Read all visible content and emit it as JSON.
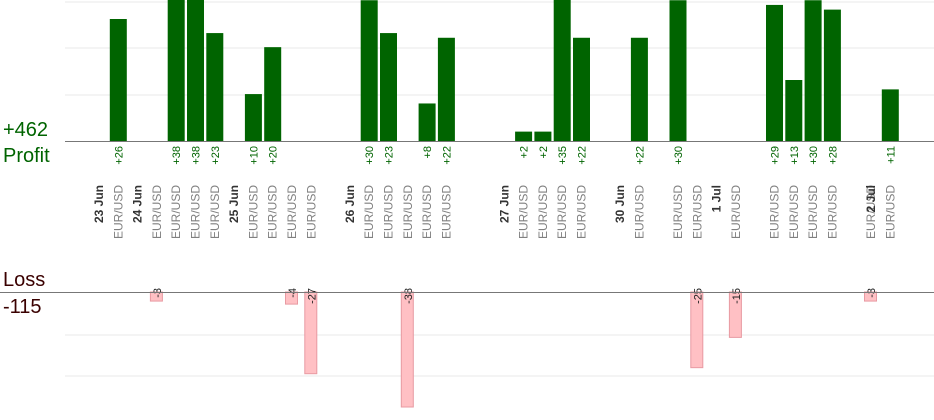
{
  "colors": {
    "profit_bar": "#006400",
    "loss_bar": "#ffc0c4",
    "profit_text": "#006400",
    "loss_text": "#3a0000",
    "grid": "#e8e8e8",
    "axis": "#777777",
    "pair_text": "#808080",
    "date_text": "#333333"
  },
  "summary": {
    "profit_total": "+462",
    "profit_label": "Profit",
    "loss_label": "Loss",
    "loss_total": "-115"
  },
  "chart_data": {
    "type": "bar",
    "title": "",
    "xlabel": "",
    "ylabel": "",
    "grid": true,
    "profit_ylim": [
      0,
      30
    ],
    "loss_ylim": [
      -40,
      0
    ],
    "date_groups": [
      {
        "date": "23 Jun",
        "slots": [
          0,
          1
        ]
      },
      {
        "date": "24 Jun",
        "slots": [
          2,
          3,
          4,
          5,
          6
        ]
      },
      {
        "date": "25 Jun",
        "slots": [
          7,
          8,
          9,
          10,
          11,
          12
        ]
      },
      {
        "date": "26 Jun",
        "slots": [
          13,
          14,
          15,
          16,
          17,
          18,
          19,
          20
        ]
      },
      {
        "date": "27 Jun",
        "slots": [
          21,
          22,
          23,
          24,
          25,
          26
        ]
      },
      {
        "date": "30 Jun",
        "slots": [
          27,
          28,
          29,
          30,
          31
        ]
      },
      {
        "date": "1 Jul",
        "slots": [
          32,
          33,
          34,
          35,
          36,
          37,
          38,
          39
        ]
      },
      {
        "date": "2 Jul",
        "slots": [
          40,
          41
        ]
      }
    ],
    "trades": [
      {
        "pair": "",
        "value": null
      },
      {
        "pair": "EUR/USD",
        "value": 26
      },
      {
        "pair": "",
        "value": null
      },
      {
        "pair": "EUR/USD",
        "value": -3
      },
      {
        "pair": "EUR/USD",
        "value": 38
      },
      {
        "pair": "EUR/USD",
        "value": 38
      },
      {
        "pair": "EUR/USD",
        "value": 23
      },
      {
        "pair": "",
        "value": null
      },
      {
        "pair": "EUR/USD",
        "value": 10
      },
      {
        "pair": "EUR/USD",
        "value": 20
      },
      {
        "pair": "EUR/USD",
        "value": -4
      },
      {
        "pair": "EUR/USD",
        "value": -27
      },
      {
        "pair": "",
        "value": null
      },
      {
        "pair": "",
        "value": null
      },
      {
        "pair": "EUR/USD",
        "value": 30
      },
      {
        "pair": "EUR/USD",
        "value": 23
      },
      {
        "pair": "EUR/USD",
        "value": -38
      },
      {
        "pair": "EUR/USD",
        "value": 8
      },
      {
        "pair": "EUR/USD",
        "value": 22
      },
      {
        "pair": "",
        "value": null
      },
      {
        "pair": "",
        "value": null
      },
      {
        "pair": "",
        "value": null
      },
      {
        "pair": "EUR/USD",
        "value": 2
      },
      {
        "pair": "EUR/USD",
        "value": 2
      },
      {
        "pair": "EUR/USD",
        "value": 35
      },
      {
        "pair": "EUR/USD",
        "value": 22
      },
      {
        "pair": "",
        "value": null
      },
      {
        "pair": "",
        "value": null
      },
      {
        "pair": "EUR/USD",
        "value": 22
      },
      {
        "pair": "",
        "value": null
      },
      {
        "pair": "EUR/USD",
        "value": 30
      },
      {
        "pair": "EUR/USD",
        "value": -25
      },
      {
        "pair": "",
        "value": null
      },
      {
        "pair": "EUR/USD",
        "value": -15
      },
      {
        "pair": "",
        "value": null
      },
      {
        "pair": "EUR/USD",
        "value": 29
      },
      {
        "pair": "EUR/USD",
        "value": 13
      },
      {
        "pair": "EUR/USD",
        "value": 30
      },
      {
        "pair": "EUR/USD",
        "value": 28
      },
      {
        "pair": "",
        "value": null
      },
      {
        "pair": "EUR/USD",
        "value": -3
      },
      {
        "pair": "EUR/USD",
        "value": 11
      }
    ]
  }
}
